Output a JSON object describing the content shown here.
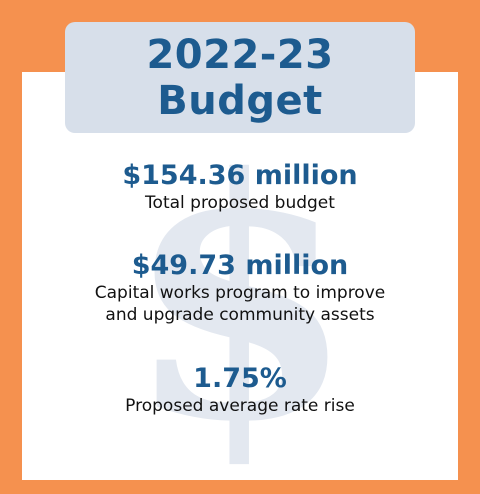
{
  "title": {
    "line1": "2022-23",
    "line2": "Budget"
  },
  "background_symbol": "$",
  "stats": [
    {
      "value": "$154.36 million",
      "description_lines": [
        "Total proposed budget"
      ]
    },
    {
      "value": "$49.73 million",
      "description_lines": [
        "Capital works program to improve",
        "and upgrade community assets"
      ]
    },
    {
      "value": "1.75%",
      "description_lines": [
        "Proposed average rate rise"
      ]
    }
  ],
  "colors": {
    "frame": "#f5914f",
    "title_box": "#d7dfea",
    "accent_text": "#1d5b8f",
    "watermark": "#e3e8f0"
  }
}
